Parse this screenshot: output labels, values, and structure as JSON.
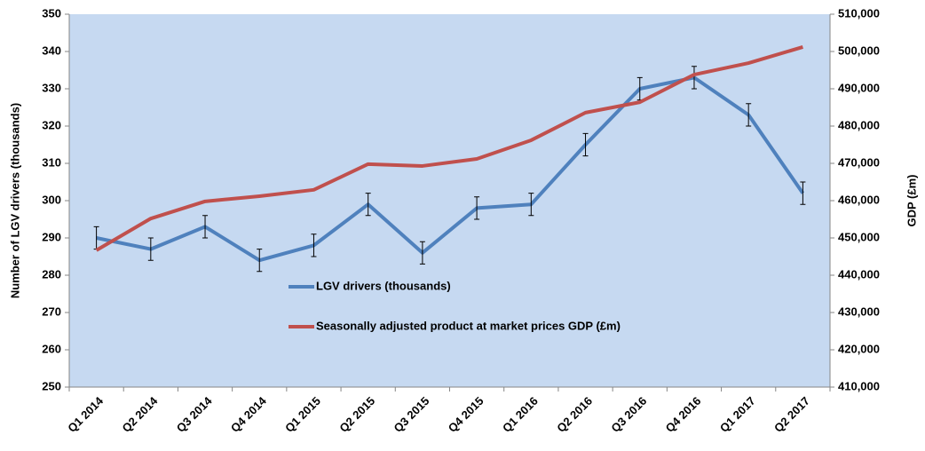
{
  "chart_data": {
    "type": "line",
    "categories": [
      "Q1 2014",
      "Q2 2014",
      "Q3 2014",
      "Q4 2014",
      "Q1 2015",
      "Q2 2015",
      "Q3 2015",
      "Q4 2015",
      "Q1 2016",
      "Q2 2016",
      "Q3 2016",
      "Q4 2016",
      "Q1 2017",
      "Q2 2017"
    ],
    "series": [
      {
        "name": "LGV drivers (thousands)",
        "color": "#4f81bd",
        "axis": "y",
        "values": [
          290,
          287,
          293,
          284,
          288,
          299,
          286,
          298,
          299,
          315,
          330,
          333,
          323,
          302
        ],
        "errors": [
          3,
          3,
          3,
          3,
          3,
          3,
          3,
          3,
          3,
          3,
          3,
          3,
          3,
          3
        ]
      },
      {
        "name": "Seasonally adjusted product at market prices GDP (£m)",
        "color": "#c0504d",
        "axis": "y2",
        "values": [
          446700,
          455200,
          459800,
          461200,
          462900,
          469800,
          469300,
          471200,
          476200,
          483600,
          486400,
          493800,
          496900,
          501200
        ]
      }
    ],
    "ylabel": "Number of LGV drivers (thousands)",
    "y2label": "GDP (£m)",
    "ylim": [
      250,
      350
    ],
    "yticks": [
      250,
      260,
      270,
      280,
      290,
      300,
      310,
      320,
      330,
      340,
      350
    ],
    "y2lim": [
      410000,
      510000
    ],
    "y2ticks": [
      {
        "value": 410000,
        "label": "410,000"
      },
      {
        "value": 420000,
        "label": "420,000"
      },
      {
        "value": 430000,
        "label": "430,000"
      },
      {
        "value": 440000,
        "label": "440,000"
      },
      {
        "value": 450000,
        "label": "450,000"
      },
      {
        "value": 460000,
        "label": "460,000"
      },
      {
        "value": 470000,
        "label": "470,000"
      },
      {
        "value": 480000,
        "label": "480,000"
      },
      {
        "value": 490000,
        "label": "490,000"
      },
      {
        "value": 500000,
        "label": "500,000"
      },
      {
        "value": 510000,
        "label": "510,000"
      }
    ]
  }
}
